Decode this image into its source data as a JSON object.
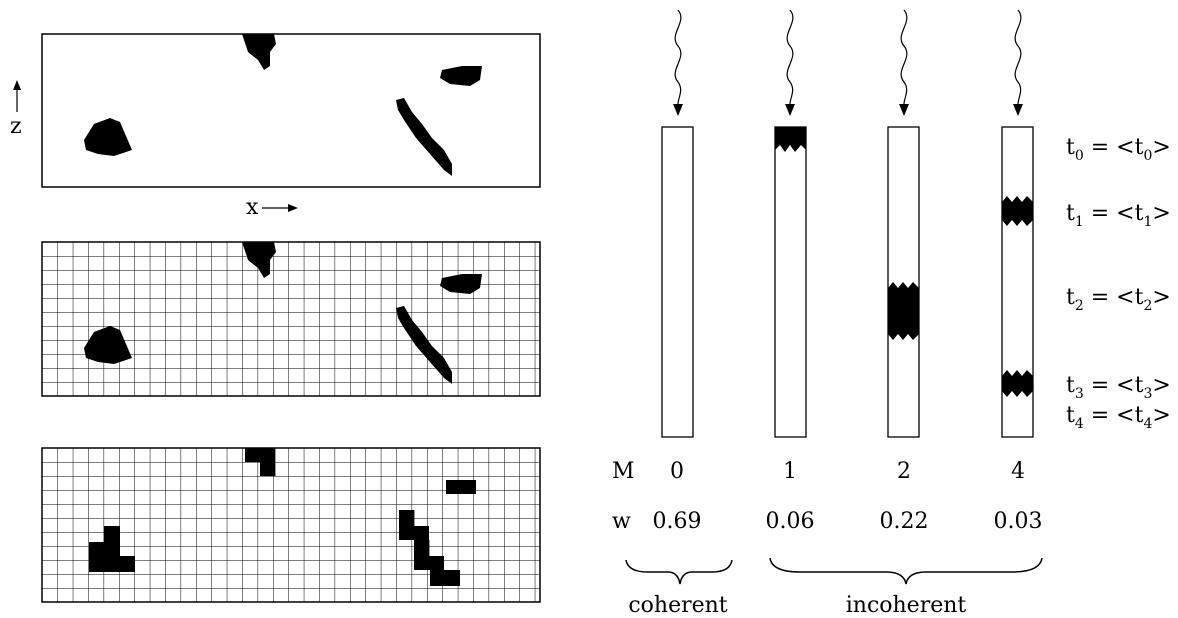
{
  "panel_axes": {
    "z_label": "z",
    "x_label": "x"
  },
  "columns": [
    {
      "m": "0",
      "w": "0.69"
    },
    {
      "m": "1",
      "w": "0.06"
    },
    {
      "m": "2",
      "w": "0.22"
    },
    {
      "m": "4",
      "w": "0.03"
    }
  ],
  "row_labels": {
    "m": "M",
    "w": "w"
  },
  "groups": {
    "coherent": "coherent",
    "incoherent": "incoherent"
  },
  "time_labels": [
    {
      "t": "t",
      "sub": "0",
      "rhs": " = <t",
      "rhs_sub": "0",
      "close": ">"
    },
    {
      "t": "t",
      "sub": "1",
      "rhs": " = <t",
      "rhs_sub": "1",
      "close": ">"
    },
    {
      "t": "t",
      "sub": "2",
      "rhs": " = <t",
      "rhs_sub": "2",
      "close": ">"
    },
    {
      "t": "t",
      "sub": "3",
      "rhs": " = <t",
      "rhs_sub": "3",
      "close": ">"
    },
    {
      "t": "t",
      "sub": "4",
      "rhs": " = <t",
      "rhs_sub": "4",
      "close": ">"
    }
  ],
  "colors": {
    "ink": "#000000",
    "background": "#ffffff"
  }
}
